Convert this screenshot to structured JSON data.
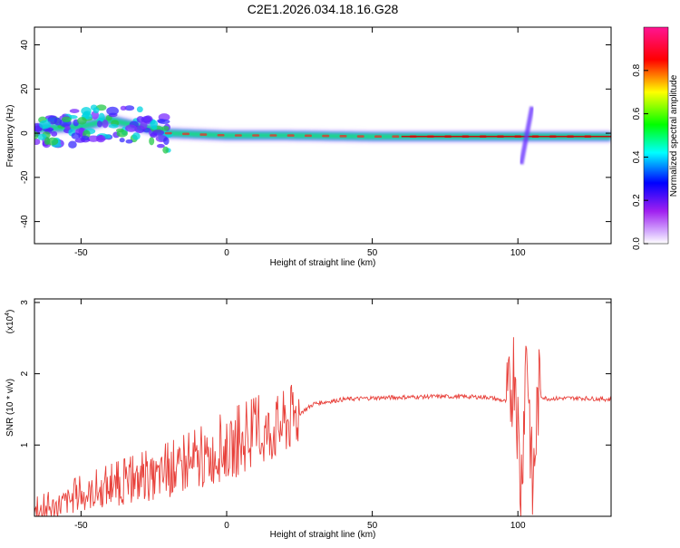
{
  "title": "C2E1.2026.034.18.16.G28",
  "chart_data": [
    {
      "type": "heatmap",
      "xlabel": "Height of straight line (km)",
      "ylabel": "Frequency (Hz)",
      "xlim": [
        -66,
        132
      ],
      "ylim": [
        -50,
        48
      ],
      "xticks": [
        -50,
        0,
        50,
        100
      ],
      "yticks": [
        -40,
        -20,
        0,
        20,
        40
      ],
      "xtick_labels": [
        "-50",
        "0",
        "50",
        "100"
      ],
      "ytick_labels": [
        "-40",
        "-20",
        "0",
        "20",
        "40"
      ],
      "colorbar": {
        "label": "Normalized spectral amplitude",
        "range": [
          0.0,
          1.0
        ],
        "ticks": [
          0.0,
          0.2,
          0.4,
          0.6,
          0.8
        ],
        "tick_labels": [
          "0.0",
          "0.2",
          "0.4",
          "0.6",
          "0.8"
        ],
        "colormap": [
          "#ffffff",
          "#a020f0",
          "#0000ff",
          "#00ffff",
          "#00ff00",
          "#ffff00",
          "#ff0000",
          "#ff1493"
        ]
      },
      "ridge": {
        "description_points_x": [
          -66,
          -50,
          -40,
          -30,
          -20,
          0,
          20,
          50,
          80,
          99,
          105,
          132
        ],
        "description_points_y": [
          2,
          3,
          6,
          3,
          0,
          -1,
          -1,
          -1.5,
          -1.5,
          -1.5,
          -1.5,
          -1.5
        ]
      }
    },
    {
      "type": "line",
      "xlabel": "Height of straight line (km)",
      "ylabel": "SNR (10 * v/v)",
      "exponent_label": "(x10",
      "exponent_sup": "4",
      "exponent_close": ")",
      "xlim": [
        -66,
        132
      ],
      "ylim": [
        0,
        3.05
      ],
      "xticks": [
        -50,
        0,
        50,
        100
      ],
      "yticks": [
        1,
        2,
        3
      ],
      "xtick_labels": [
        "-50",
        "0",
        "50",
        "100"
      ],
      "ytick_labels": [
        "1",
        "2",
        "3"
      ],
      "series": [
        {
          "name": "SNR",
          "color": "#e8403a",
          "trend_x": [
            -66,
            -60,
            -50,
            -40,
            -30,
            -20,
            -10,
            0,
            10,
            20,
            30,
            40,
            50,
            60,
            70,
            80,
            90,
            97,
            99,
            101,
            103,
            105,
            107,
            110,
            120,
            132
          ],
          "trend_y": [
            0.05,
            0.12,
            0.28,
            0.38,
            0.48,
            0.58,
            0.72,
            0.92,
            1.05,
            1.3,
            1.58,
            1.64,
            1.66,
            1.67,
            1.68,
            1.68,
            1.67,
            1.6,
            2.2,
            0.3,
            2.5,
            0.3,
            1.7,
            1.65,
            1.66,
            1.64
          ]
        }
      ]
    }
  ]
}
